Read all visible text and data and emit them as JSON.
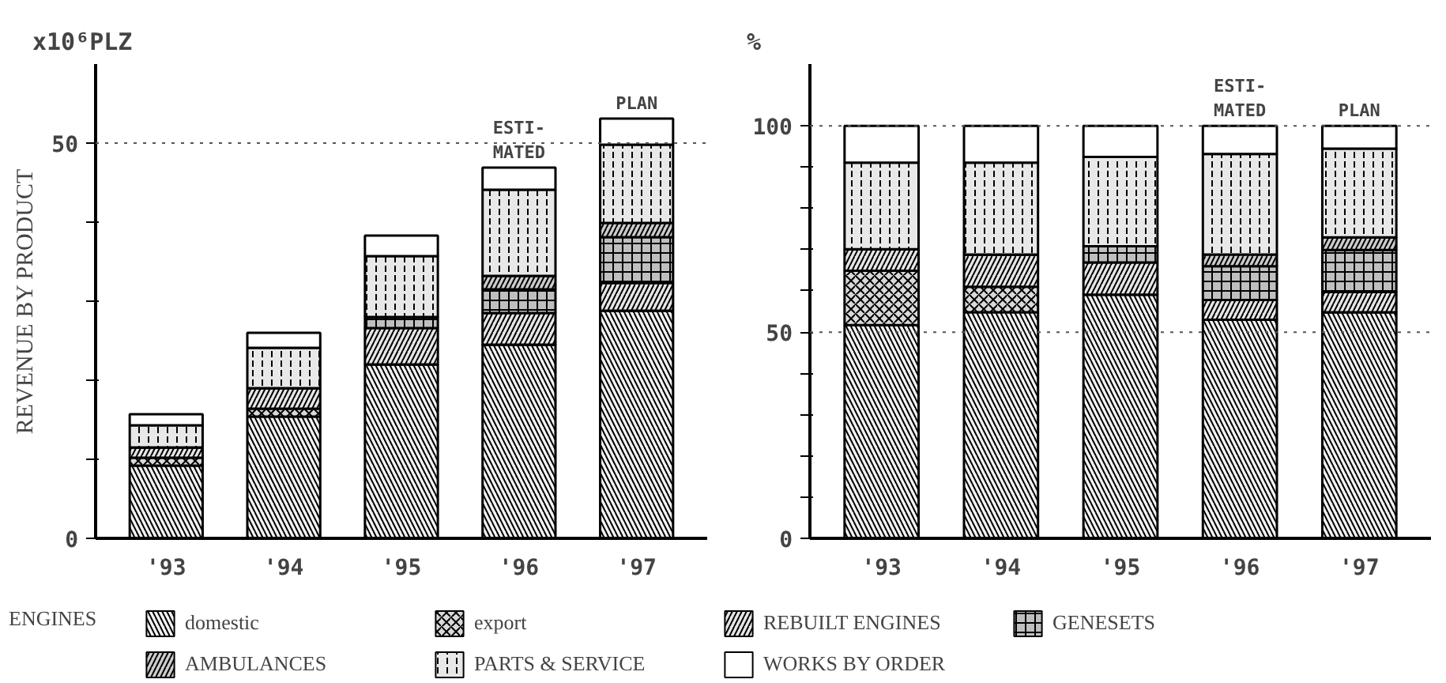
{
  "chart_data": [
    {
      "type": "bar",
      "stacked": true,
      "ylabel": "REVENUE BY PRODUCT",
      "legend": "bottom",
      "legend_title": "ENGINES",
      "categories": [
        "'93",
        "'94",
        "'95",
        "'96",
        "'97"
      ],
      "series": [
        {
          "name": "domestic",
          "color": "#f2f2f2",
          "values": [
            9.2,
            15.4,
            22.0,
            24.5,
            28.8
          ]
        },
        {
          "name": "export",
          "color": "#d9d9d9",
          "values": [
            1.0,
            1.0,
            0,
            0,
            0
          ]
        },
        {
          "name": "REBUILT ENGINES",
          "color": "#e6e6e6",
          "values": [
            1.3,
            2.6,
            4.6,
            4.0,
            3.5
          ]
        },
        {
          "name": "GENESETS",
          "color": "#bfbfbf",
          "values": [
            0,
            0,
            1.4,
            3.0,
            5.8
          ]
        },
        {
          "name": "AMBULANCES",
          "color": "#cccccc",
          "values": [
            0,
            0,
            0,
            1.7,
            1.8
          ]
        },
        {
          "name": "PARTS & SERVICE",
          "color": "#e8e8e8",
          "values": [
            2.8,
            5.1,
            7.7,
            10.9,
            9.9
          ]
        },
        {
          "name": "WORKS BY ORDER",
          "color": "#ffffff",
          "values": [
            1.4,
            1.9,
            2.6,
            2.8,
            3.3
          ]
        }
      ],
      "ylim": [
        0,
        60
      ],
      "yticks": [
        0,
        {
          "value": 10,
          "label": null
        },
        {
          "value": 20,
          "label": null
        },
        {
          "value": 30,
          "label": null
        },
        {
          "value": 40,
          "label": null
        },
        50
      ],
      "ref_lines": [
        {
          "axis": "y",
          "value": 50,
          "line_style": "dotted",
          "color": "#555555"
        }
      ],
      "annotations": [
        "x10⁶PLZ",
        {
          "text": "ESTI-\nMATED",
          "x": "'96",
          "y": 46.9
        },
        {
          "text": "PLAN",
          "x": "'97",
          "y": 53.1
        }
      ]
    },
    {
      "type": "bar",
      "stacked": true,
      "categories": [
        "'93",
        "'94",
        "'95",
        "'96",
        "'97"
      ],
      "series": [
        {
          "color": "#f2f2f2",
          "values": [
            51.7,
            54.8,
            59.1,
            53.0,
            54.8
          ]
        },
        {
          "color": "#d9d9d9",
          "values": [
            13.2,
            6.2,
            0,
            0,
            0
          ]
        },
        {
          "color": "#e6e6e6",
          "values": [
            5.2,
            7.8,
            7.8,
            4.8,
            4.9
          ]
        },
        {
          "color": "#bfbfbf",
          "values": [
            0,
            0,
            3.9,
            8.2,
            10.2
          ]
        },
        {
          "color": "#cccccc",
          "values": [
            0,
            0,
            0,
            2.8,
            3.1
          ]
        },
        {
          "color": "#e8e8e8",
          "values": [
            21.0,
            22.3,
            21.7,
            24.4,
            21.5
          ]
        },
        {
          "color": "#ffffff",
          "values": [
            8.9,
            8.9,
            7.5,
            6.8,
            5.5
          ]
        }
      ],
      "ylim": [
        0,
        115
      ],
      "yticks": [
        0,
        {
          "value": 10,
          "label": null
        },
        {
          "value": 20,
          "label": null
        },
        {
          "value": 30,
          "label": null
        },
        {
          "value": 40,
          "label": null
        },
        50,
        {
          "value": 60,
          "label": null
        },
        {
          "value": 70,
          "label": null
        },
        {
          "value": 80,
          "label": null
        },
        {
          "value": 90,
          "label": null
        },
        100
      ],
      "ref_lines": [
        {
          "axis": "y",
          "value": 50,
          "line_style": "dotted",
          "color": "#555555"
        },
        {
          "axis": "y",
          "value": 100,
          "line_style": "dotted",
          "color": "#555555"
        }
      ],
      "annotations": [
        "%",
        {
          "text": "ESTI-\nMATED",
          "x": "'96",
          "y": 100
        },
        {
          "text": "PLAN",
          "x": "'97",
          "y": 100
        }
      ]
    }
  ]
}
